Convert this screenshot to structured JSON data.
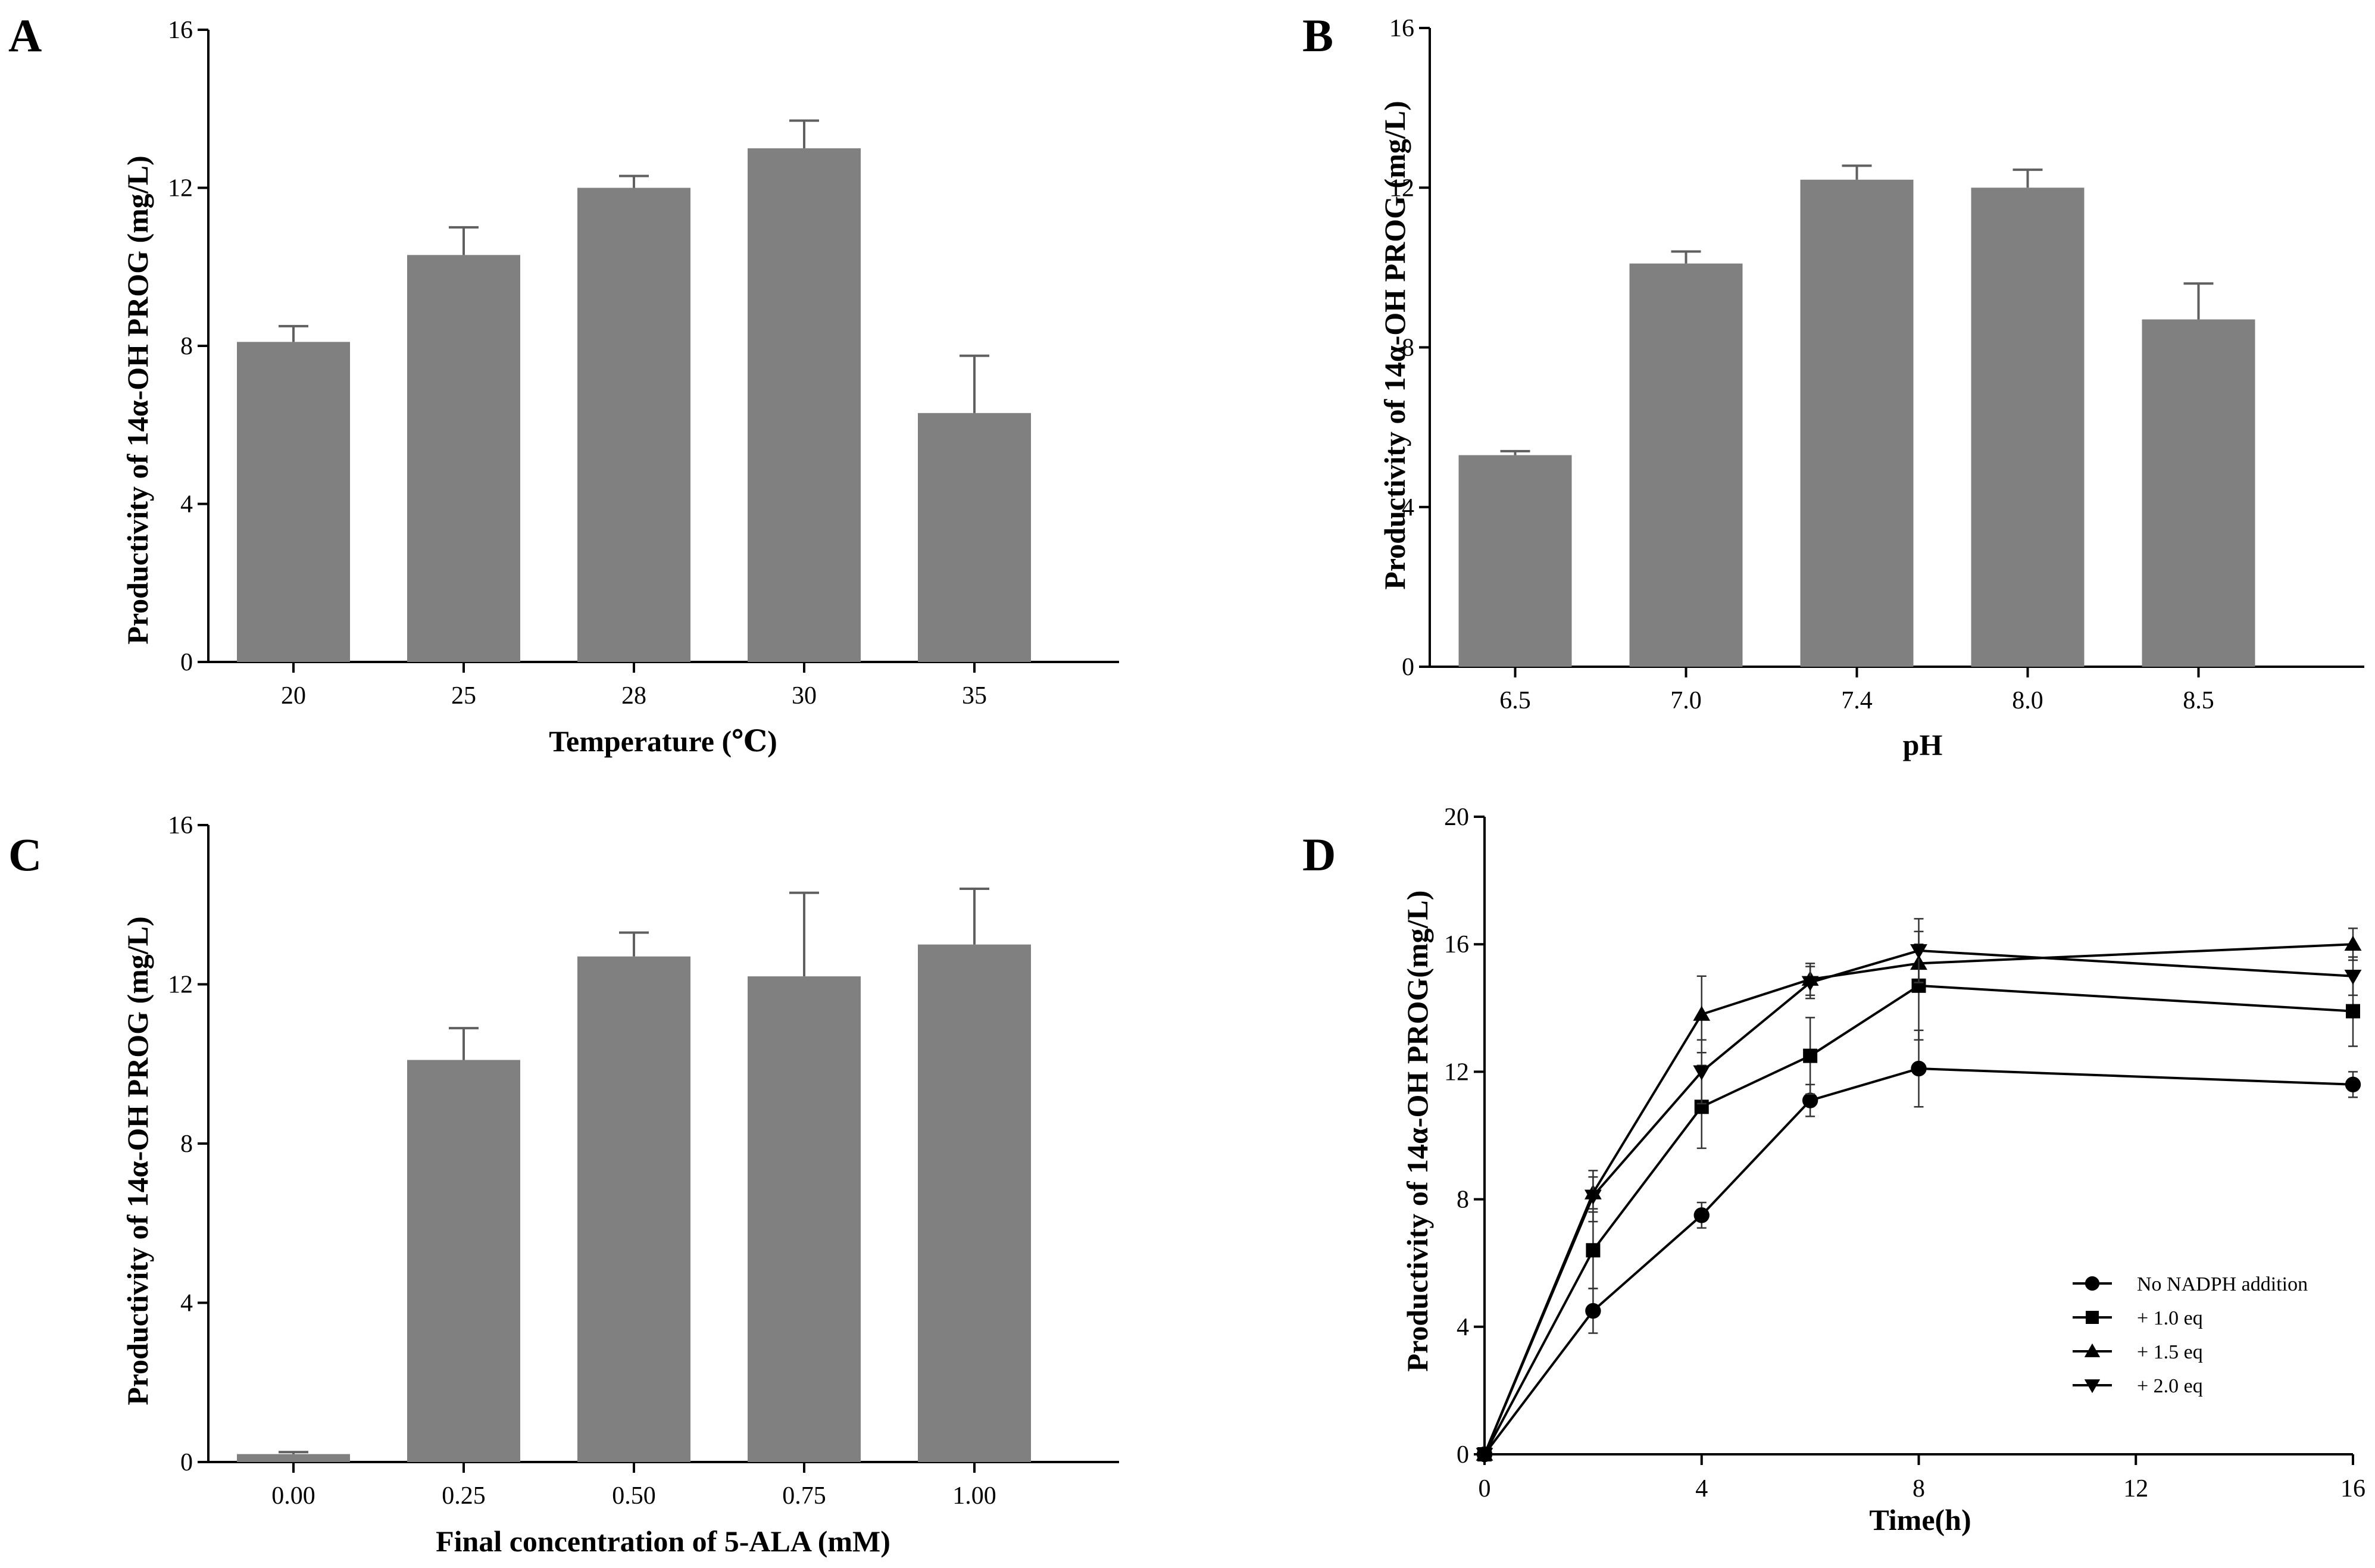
{
  "chart_data": [
    {
      "panel": "A",
      "type": "bar",
      "categories": [
        "20",
        "25",
        "28",
        "30",
        "35"
      ],
      "values": [
        8.1,
        10.3,
        12.0,
        13.0,
        6.3
      ],
      "errors": [
        0.4,
        0.7,
        0.3,
        0.7,
        1.45
      ],
      "xlabel": "Temperature (℃)",
      "ylabel": "Productivity of 14α-OH PROG (mg/L)",
      "ylim": [
        0,
        16
      ],
      "yticks": [
        0,
        4,
        8,
        12,
        16
      ],
      "grid": false
    },
    {
      "panel": "B",
      "type": "bar",
      "categories": [
        "6.5",
        "7.0",
        "7.4",
        "8.0",
        "8.5"
      ],
      "values": [
        5.3,
        10.1,
        12.2,
        12.0,
        8.7
      ],
      "errors": [
        0.1,
        0.3,
        0.35,
        0.45,
        0.9
      ],
      "xlabel": "pH",
      "ylabel": "Productivity of 14α-OH PROG (mg/L)",
      "ylim": [
        0,
        16
      ],
      "yticks": [
        0,
        4,
        8,
        12,
        16
      ],
      "grid": false
    },
    {
      "panel": "C",
      "type": "bar",
      "categories": [
        "0.00",
        "0.25",
        "0.50",
        "0.75",
        "1.00"
      ],
      "values": [
        0.2,
        10.1,
        12.7,
        12.2,
        13.0
      ],
      "errors": [
        0.05,
        0.8,
        0.6,
        2.1,
        1.4
      ],
      "xlabel": "Final concentration of 5-ALA (mM)",
      "ylabel": "Productivity of 14α-OH PROG (mg/L)",
      "ylim": [
        0,
        16
      ],
      "yticks": [
        0,
        4,
        8,
        12,
        16
      ],
      "grid": false
    },
    {
      "panel": "D",
      "type": "line",
      "x": [
        0,
        2,
        4,
        6,
        8,
        16
      ],
      "series": [
        {
          "name": "No NADPH addition",
          "marker": "circle",
          "values": [
            0,
            4.5,
            7.5,
            11.1,
            12.1,
            11.6
          ],
          "errors": [
            0,
            0.7,
            0.4,
            0.5,
            1.2,
            0.4
          ]
        },
        {
          "name": "+ 1.0 eq",
          "marker": "square",
          "values": [
            0,
            6.4,
            10.9,
            12.5,
            14.7,
            13.9
          ],
          "errors": [
            0,
            1.2,
            1.3,
            1.2,
            1.7,
            1.1
          ]
        },
        {
          "name": "+ 1.5 eq",
          "marker": "triangle-up",
          "values": [
            0,
            8.2,
            13.8,
            14.9,
            15.4,
            16.0
          ],
          "errors": [
            0,
            0.5,
            1.2,
            0.5,
            0.6,
            0.5
          ]
        },
        {
          "name": "+ 2.0 eq",
          "marker": "triangle-down",
          "values": [
            0,
            8.1,
            12.0,
            14.8,
            15.8,
            15.0
          ],
          "errors": [
            0,
            0.8,
            1.0,
            0.5,
            1.0,
            0.6
          ]
        }
      ],
      "xlabel": "Time(h)",
      "ylabel": "Productivity of 14α-OH PROG(mg/L)",
      "xlim": [
        0,
        16
      ],
      "xticks": [
        0,
        4,
        8,
        12,
        16
      ],
      "ylim": [
        0,
        20
      ],
      "yticks": [
        0,
        4,
        8,
        12,
        16,
        20
      ],
      "legend_position": "bottom-right",
      "grid": false
    }
  ]
}
